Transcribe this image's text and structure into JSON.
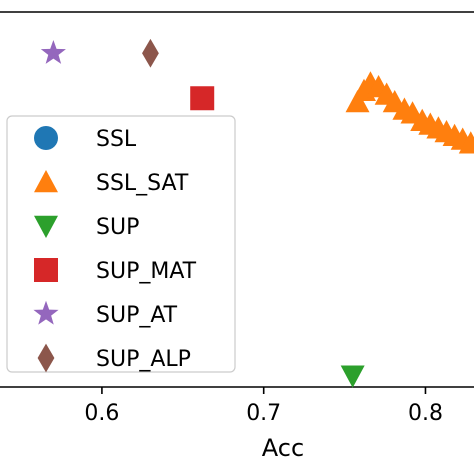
{
  "chart_data": {
    "type": "scatter",
    "xlabel": "Acc",
    "ylabel": "",
    "xlim": [
      0.537,
      0.83
    ],
    "ylim": [
      0.0,
      1.0
    ],
    "xticks": [
      0.6,
      0.7,
      0.8
    ],
    "xtick_labels": [
      "0.6",
      "0.7",
      "0.8"
    ],
    "grid": false,
    "legend_position": "left",
    "series": [
      {
        "name": "SSL",
        "marker": "circle",
        "color": "#1f77b4",
        "points": []
      },
      {
        "name": "SSL_SAT",
        "marker": "triangle-up",
        "color": "#ff7f0e",
        "points": [
          [
            0.758,
            0.76
          ],
          [
            0.762,
            0.79
          ],
          [
            0.766,
            0.81
          ],
          [
            0.771,
            0.8
          ],
          [
            0.776,
            0.78
          ],
          [
            0.781,
            0.76
          ],
          [
            0.787,
            0.74
          ],
          [
            0.792,
            0.73
          ],
          [
            0.798,
            0.71
          ],
          [
            0.803,
            0.7
          ],
          [
            0.808,
            0.69
          ],
          [
            0.813,
            0.68
          ],
          [
            0.818,
            0.67
          ],
          [
            0.823,
            0.66
          ],
          [
            0.828,
            0.65
          ]
        ]
      },
      {
        "name": "SUP",
        "marker": "triangle-down",
        "color": "#2ca02c",
        "points": [
          [
            0.755,
            0.03
          ]
        ]
      },
      {
        "name": "SUP_MAT",
        "marker": "square",
        "color": "#d62728",
        "points": [
          [
            0.662,
            0.77
          ]
        ]
      },
      {
        "name": "SUP_AT",
        "marker": "star",
        "color": "#9467bd",
        "points": [
          [
            0.57,
            0.89
          ]
        ]
      },
      {
        "name": "SUP_ALP",
        "marker": "diamond",
        "color": "#8c564b",
        "points": [
          [
            0.63,
            0.89
          ]
        ]
      }
    ]
  }
}
